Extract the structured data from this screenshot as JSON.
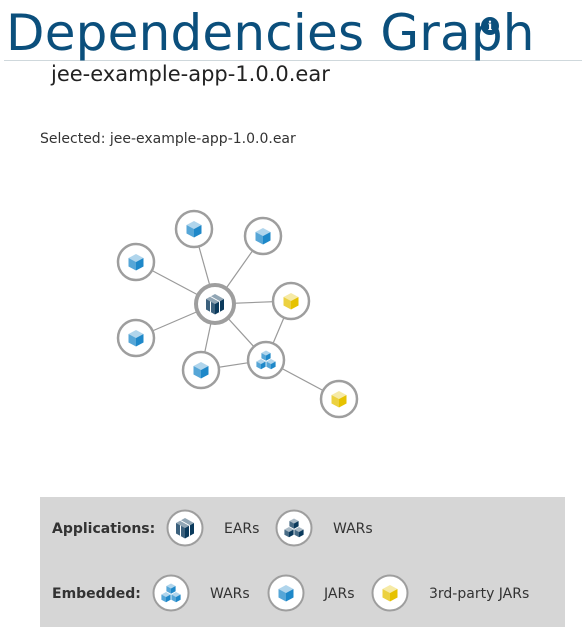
{
  "header": {
    "title": "Dependencies Graph",
    "info_icon": "info-icon"
  },
  "app_name": "jee-example-app-1.0.0.ear",
  "selection": {
    "prefix": "Selected:",
    "value": "jee-example-app-1.0.0.ear"
  },
  "graph": {
    "nodes": [
      {
        "id": "ear-root",
        "kind": "ear",
        "selected": true
      },
      {
        "id": "jar-1",
        "kind": "jar"
      },
      {
        "id": "jar-2",
        "kind": "jar"
      },
      {
        "id": "jar-3",
        "kind": "jar"
      },
      {
        "id": "jar-4",
        "kind": "jar"
      },
      {
        "id": "jar-5",
        "kind": "jar"
      },
      {
        "id": "third-1",
        "kind": "third-party-jar"
      },
      {
        "id": "war-embedded",
        "kind": "embedded-war"
      },
      {
        "id": "third-2",
        "kind": "third-party-jar"
      }
    ],
    "edges": [
      [
        "ear-root",
        "jar-1"
      ],
      [
        "ear-root",
        "jar-2"
      ],
      [
        "ear-root",
        "jar-3"
      ],
      [
        "ear-root",
        "jar-4"
      ],
      [
        "ear-root",
        "jar-5"
      ],
      [
        "ear-root",
        "third-1"
      ],
      [
        "ear-root",
        "war-embedded"
      ],
      [
        "war-embedded",
        "jar-5"
      ],
      [
        "war-embedded",
        "third-1"
      ],
      [
        "war-embedded",
        "third-2"
      ]
    ]
  },
  "legend": {
    "applications_label": "Applications:",
    "embedded_label": "Embedded:",
    "ears_label": "EARs",
    "wars_label": "WARs",
    "embedded_wars_label": "WARs",
    "jars_label": "JARs",
    "third_party_label": "3rd-party JARs"
  },
  "colors": {
    "title": "#0b4f7c",
    "app_icon": "#0b3a5c",
    "embedded_icon": "#1e88c9",
    "third_party_icon": "#e6c200",
    "node_border": "#9e9e9e",
    "edge": "#9a9a9a",
    "legend_bg": "#d6d6d6"
  }
}
